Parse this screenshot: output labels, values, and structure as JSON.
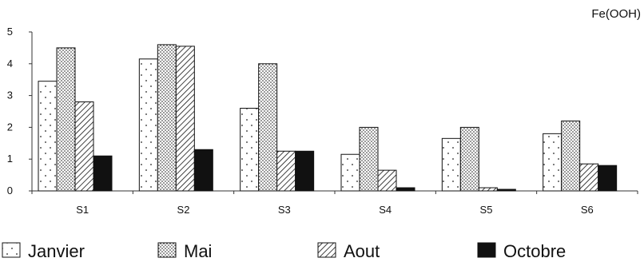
{
  "chart_data": {
    "type": "bar",
    "title": "",
    "corner_label": "Fe(OOH)",
    "xlabel": "",
    "ylabel": "",
    "ylim": [
      0,
      5
    ],
    "yticks": [
      0,
      1,
      2,
      3,
      4,
      5
    ],
    "grid": false,
    "legend_position": "bottom",
    "categories": [
      "S1",
      "S2",
      "S3",
      "S4",
      "S5",
      "S6"
    ],
    "series": [
      {
        "name": "Janvier",
        "pattern": "dots-sparse",
        "values": [
          3.45,
          4.15,
          2.6,
          1.15,
          1.65,
          1.8
        ]
      },
      {
        "name": "Mai",
        "pattern": "dots-dense",
        "values": [
          4.5,
          4.6,
          4.0,
          2.0,
          2.0,
          2.2
        ]
      },
      {
        "name": "Aout",
        "pattern": "diagonal-hatch",
        "values": [
          2.8,
          4.55,
          1.25,
          0.65,
          0.1,
          0.85
        ]
      },
      {
        "name": "Octobre",
        "pattern": "solid",
        "values": [
          1.1,
          1.3,
          1.25,
          0.1,
          0.05,
          0.8
        ]
      }
    ]
  }
}
